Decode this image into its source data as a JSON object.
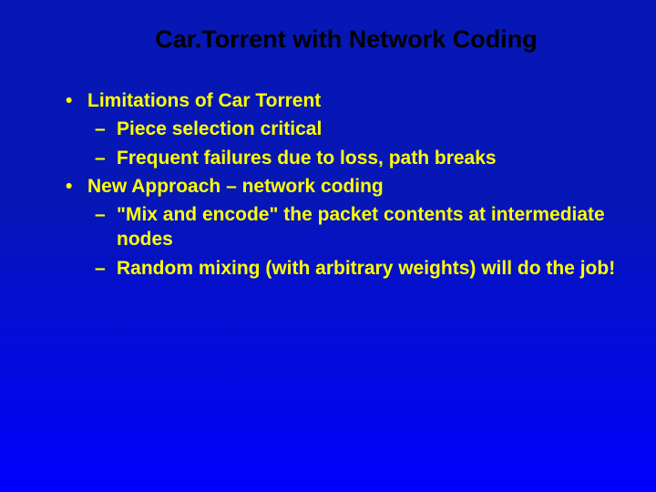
{
  "slide": {
    "title": "Car.Torrent with Network Coding",
    "bullets": [
      {
        "level": 1,
        "text": "Limitations of Car Torrent"
      },
      {
        "level": 2,
        "text": "Piece selection critical"
      },
      {
        "level": 2,
        "text": "Frequent failures due to loss, path breaks"
      },
      {
        "level": 1,
        "text": "New Approach – network coding"
      },
      {
        "level": 2,
        "text": "\"Mix and encode\" the packet contents at intermediate nodes"
      },
      {
        "level": 2,
        "text": "Random mixing (with arbitrary weights)  will do the job!"
      }
    ],
    "colors": {
      "background_top": "#0617b5",
      "background_bottom": "#0000ff",
      "title_color": "#000000",
      "bullet_color": "#ffff00"
    },
    "typography": {
      "title_fontsize": 27,
      "bullet_fontsize": 21,
      "font_family": "Arial",
      "font_weight": "bold"
    }
  }
}
